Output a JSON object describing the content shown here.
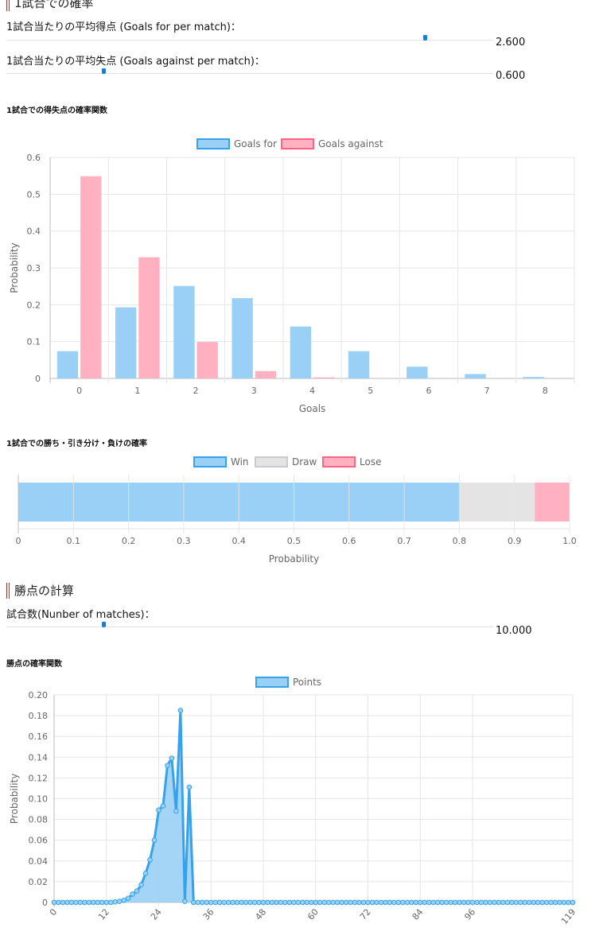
{
  "section1": {
    "title": "1試合での確率"
  },
  "params": {
    "goals_for": {
      "label": "1試合当たりの平均得点 (Goals for per match)：",
      "value": "2.600",
      "slider_fraction": 0.86
    },
    "goals_against": {
      "label": "1試合当たりの平均失点 (Goals against per match)：",
      "value": "0.600",
      "slider_fraction": 0.2
    }
  },
  "colors": {
    "blue_fill": "#9ad0f5",
    "blue_border": "#36a2eb",
    "pink_fill": "#ffb1c1",
    "pink_border": "#ff6384",
    "gray_fill": "#e4e4e4",
    "gray_border": "#c9cbcf",
    "grid": "#e6e6e6",
    "axis_text": "#666666",
    "slider_thumb": "#1a7ed6",
    "section_bar": "#b0322f"
  },
  "goals_chart": {
    "heading": "1試合での得失点の確率関数",
    "chart_data": {
      "type": "bar",
      "categories": [
        "0",
        "1",
        "2",
        "3",
        "4",
        "5",
        "6",
        "7",
        "8"
      ],
      "series": [
        {
          "name": "Goals for",
          "values": [
            0.074,
            0.193,
            0.251,
            0.218,
            0.141,
            0.074,
            0.032,
            0.012,
            0.004
          ]
        },
        {
          "name": "Goals against",
          "values": [
            0.549,
            0.329,
            0.099,
            0.02,
            0.003,
            0.0004,
            0.0,
            0.0,
            0.0
          ]
        }
      ],
      "xlabel": "Goals",
      "ylabel": "Probability",
      "ylim": [
        0,
        0.6
      ],
      "yticks": [
        "0",
        "0.1",
        "0.2",
        "0.3",
        "0.4",
        "0.5",
        "0.6"
      ],
      "grid": true,
      "legend": "top-center"
    }
  },
  "wdl_chart": {
    "heading": "1試合での勝ち・引き分け・負けの確率",
    "chart_data": {
      "type": "bar",
      "orientation": "horizontal-stacked",
      "series": [
        {
          "name": "Win",
          "values": [
            0.801
          ]
        },
        {
          "name": "Draw",
          "values": [
            0.136
          ]
        },
        {
          "name": "Lose",
          "values": [
            0.063
          ]
        }
      ],
      "xlabel": "Probability",
      "xlim": [
        0,
        1
      ],
      "xticks": [
        "0",
        "0.1",
        "0.2",
        "0.3",
        "0.4",
        "0.5",
        "0.6",
        "0.7",
        "0.8",
        "0.9",
        "1.0"
      ],
      "grid": true,
      "legend": "top-center"
    }
  },
  "section2": {
    "title": "勝点の計算"
  },
  "matches": {
    "label": "試合数(Nunber of matches)：",
    "value": "10.000",
    "slider_fraction": 0.2
  },
  "points_chart": {
    "heading": "勝点の確率関数",
    "chart_data": {
      "type": "area",
      "series": [
        {
          "name": "Points",
          "x": [
            0,
            1,
            2,
            3,
            4,
            5,
            6,
            7,
            8,
            9,
            10,
            11,
            12,
            13,
            14,
            15,
            16,
            17,
            18,
            19,
            20,
            21,
            22,
            23,
            24,
            25,
            26,
            27,
            28,
            29,
            30,
            31,
            32,
            33,
            34,
            35,
            36,
            37,
            38,
            39,
            40,
            41,
            42,
            43,
            44,
            45,
            46,
            47,
            48,
            49,
            50,
            51,
            52,
            53,
            54,
            55,
            56,
            57,
            58,
            59,
            60,
            61,
            62,
            63,
            64,
            65,
            66,
            67,
            68,
            69,
            70,
            71,
            72,
            73,
            74,
            75,
            76,
            77,
            78,
            79,
            80,
            81,
            82,
            83,
            84,
            85,
            86,
            87,
            88,
            89,
            90,
            91,
            92,
            93,
            94,
            95,
            96,
            97,
            98,
            99,
            100,
            101,
            102,
            103,
            104,
            105,
            106,
            107,
            108,
            109,
            110,
            111,
            112,
            113,
            114,
            115,
            116,
            117,
            118,
            119
          ],
          "values": [
            0,
            0,
            0,
            0,
            0,
            0,
            0,
            0,
            0,
            0,
            0,
            0,
            0,
            0,
            0.0005,
            0.001,
            0.002,
            0.004,
            0.008,
            0.011,
            0.017,
            0.028,
            0.041,
            0.06,
            0.089,
            0.093,
            0.132,
            0.139,
            0.088,
            0.185,
            0.001,
            0.111,
            0,
            0,
            0,
            0,
            0,
            0,
            0,
            0,
            0,
            0,
            0,
            0,
            0,
            0,
            0,
            0,
            0,
            0,
            0,
            0,
            0,
            0,
            0,
            0,
            0,
            0,
            0,
            0,
            0,
            0,
            0,
            0,
            0,
            0,
            0,
            0,
            0,
            0,
            0,
            0,
            0,
            0,
            0,
            0,
            0,
            0,
            0,
            0,
            0,
            0,
            0,
            0,
            0,
            0,
            0,
            0,
            0,
            0,
            0,
            0,
            0,
            0,
            0,
            0,
            0,
            0,
            0,
            0,
            0,
            0,
            0,
            0,
            0,
            0,
            0,
            0,
            0,
            0,
            0,
            0,
            0,
            0,
            0,
            0,
            0,
            0,
            0,
            0
          ]
        }
      ],
      "xlabel": "",
      "ylabel": "Probability",
      "xlim": [
        0,
        119
      ],
      "xticks": [
        "0",
        "12",
        "24",
        "36",
        "48",
        "60",
        "72",
        "84",
        "96",
        "119"
      ],
      "ylim": [
        0,
        0.2
      ],
      "yticks": [
        "0",
        "0.02",
        "0.04",
        "0.06",
        "0.08",
        "0.10",
        "0.12",
        "0.14",
        "0.16",
        "0.18",
        "0.20"
      ],
      "grid": true,
      "legend": "top-center"
    }
  }
}
